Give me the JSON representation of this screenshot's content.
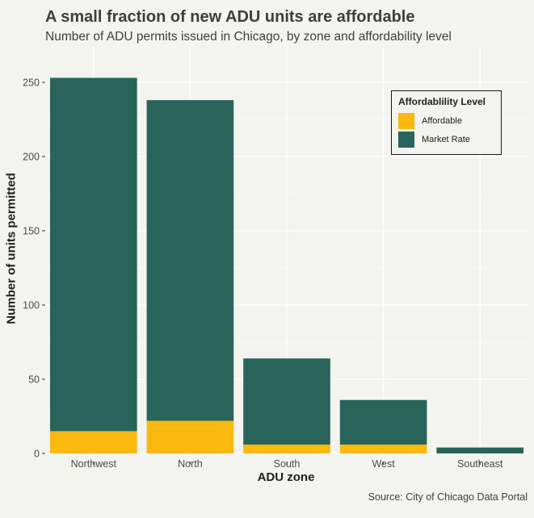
{
  "chart_data": {
    "type": "bar",
    "stacked": true,
    "title": "A small fraction of new ADU units are affordable",
    "subtitle": "Number of ADU permits issued in Chicago, by zone and affordability level",
    "caption": "Source: City of Chicago Data Portal",
    "xlabel": "ADU zone",
    "ylabel": "Number of units permitted",
    "categories": [
      "Northwest",
      "North",
      "South",
      "West",
      "Southeast"
    ],
    "series": [
      {
        "name": "Affordable",
        "color": "#fbb80f",
        "values": [
          15,
          22,
          6,
          6,
          0
        ]
      },
      {
        "name": "Market Rate",
        "color": "#29645a",
        "values": [
          238,
          216,
          58,
          30,
          4
        ]
      }
    ],
    "ylim": [
      0,
      275
    ],
    "yticks": [
      0,
      50,
      100,
      150,
      200,
      250
    ],
    "grid": true,
    "legend": {
      "title": "Affordablility Level",
      "position": "top-right"
    }
  }
}
